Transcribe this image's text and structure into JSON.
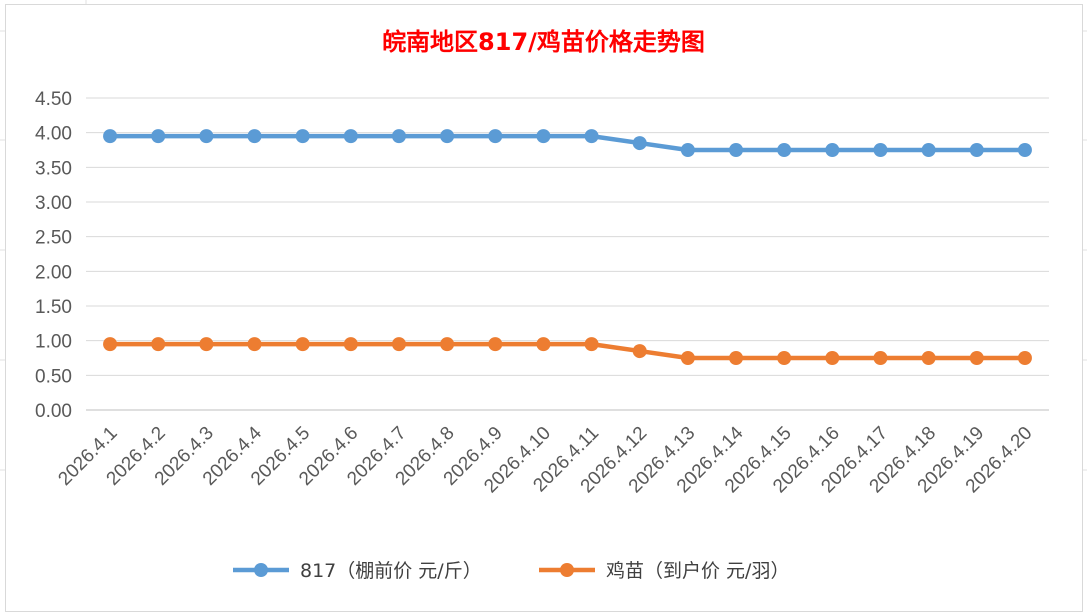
{
  "chart_data": {
    "type": "line",
    "title": "皖南地区817/鸡苗价格走势图",
    "categories": [
      "2026.4.1",
      "2026.4.2",
      "2026.4.3",
      "2026.4.4",
      "2026.4.5",
      "2026.4.6",
      "2026.4.7",
      "2026.4.8",
      "2026.4.9",
      "2026.4.10",
      "2026.4.11",
      "2026.4.12",
      "2026.4.13",
      "2026.4.14",
      "2026.4.15",
      "2026.4.16",
      "2026.4.17",
      "2026.4.18",
      "2026.4.19",
      "2026.4.20"
    ],
    "series": [
      {
        "name": "817（棚前价 元/斤）",
        "color": "#5b9bd5",
        "values": [
          3.95,
          3.95,
          3.95,
          3.95,
          3.95,
          3.95,
          3.95,
          3.95,
          3.95,
          3.95,
          3.95,
          3.85,
          3.75,
          3.75,
          3.75,
          3.75,
          3.75,
          3.75,
          3.75,
          3.75
        ]
      },
      {
        "name": "鸡苗（到户价 元/羽）",
        "color": "#ed7d31",
        "values": [
          0.95,
          0.95,
          0.95,
          0.95,
          0.95,
          0.95,
          0.95,
          0.95,
          0.95,
          0.95,
          0.95,
          0.85,
          0.75,
          0.75,
          0.75,
          0.75,
          0.75,
          0.75,
          0.75,
          0.75
        ]
      }
    ],
    "ylim": [
      0,
      4.5
    ],
    "yticks": [
      "0.00",
      "0.50",
      "1.00",
      "1.50",
      "2.00",
      "2.50",
      "3.00",
      "3.50",
      "4.00",
      "4.50"
    ],
    "grid": true,
    "legend": "bottom",
    "title_color": "#ff0000"
  }
}
